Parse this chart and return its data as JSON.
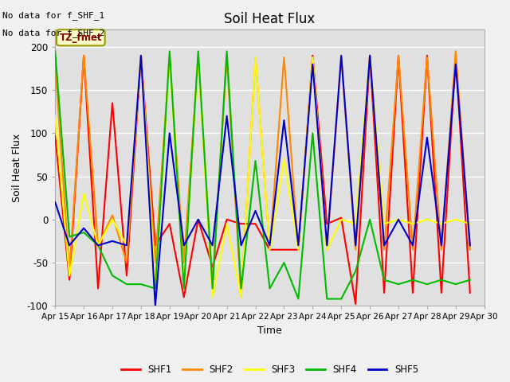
{
  "title": "Soil Heat Flux",
  "ylabel": "Soil Heat Flux",
  "xlabel": "Time",
  "annotation_line1": "No data for f_SHF_1",
  "annotation_line2": "No data for f_SHF_2",
  "legend_label_text": "TZ_fmet",
  "ylim": [
    -100,
    220
  ],
  "series": {
    "SHF1": {
      "color": "#ff0000",
      "x": [
        15.0,
        15.5,
        16.0,
        16.5,
        17.0,
        17.5,
        18.0,
        18.5,
        19.0,
        19.5,
        20.0,
        20.5,
        21.0,
        21.5,
        22.0,
        22.5,
        23.0,
        23.5,
        24.0,
        24.5,
        25.0,
        25.5,
        26.0,
        26.5,
        27.0,
        27.5,
        28.0,
        28.5,
        29.0,
        29.5
      ],
      "y": [
        97,
        -70,
        190,
        -80,
        135,
        -65,
        190,
        -30,
        -5,
        -90,
        0,
        -55,
        0,
        -5,
        -5,
        -35,
        -35,
        -35,
        190,
        -5,
        2,
        -98,
        190,
        -85,
        190,
        -85,
        190,
        -85,
        190,
        -85
      ]
    },
    "SHF2": {
      "color": "#ff8800",
      "x": [
        15.0,
        15.5,
        16.0,
        16.5,
        17.0,
        17.5,
        18.0,
        18.5,
        19.0,
        19.5,
        20.0,
        20.5,
        21.0,
        21.5,
        22.0,
        22.5,
        23.0,
        23.5,
        24.0,
        24.5,
        25.0,
        25.5,
        26.0,
        26.5,
        27.0,
        27.5,
        28.0,
        28.5,
        29.0,
        29.5
      ],
      "y": [
        180,
        -60,
        190,
        -30,
        5,
        -50,
        190,
        -50,
        188,
        -50,
        188,
        -75,
        188,
        -90,
        188,
        -35,
        188,
        -35,
        188,
        -35,
        188,
        -35,
        190,
        -35,
        190,
        -35,
        188,
        -35,
        195,
        -35
      ]
    },
    "SHF3": {
      "color": "#ffff00",
      "x": [
        15.0,
        15.5,
        16.0,
        16.5,
        17.0,
        17.5,
        18.0,
        18.5,
        19.0,
        19.5,
        20.0,
        20.5,
        21.0,
        21.5,
        22.0,
        22.5,
        23.0,
        23.5,
        24.0,
        24.5,
        25.0,
        25.5,
        26.0,
        26.5,
        27.0,
        27.5,
        28.0,
        28.5,
        29.0,
        29.5
      ],
      "y": [
        120,
        -65,
        30,
        -30,
        0,
        -30,
        190,
        -75,
        188,
        -75,
        188,
        -90,
        -5,
        -90,
        188,
        -35,
        70,
        -35,
        188,
        -35,
        0,
        -5,
        188,
        -5,
        0,
        -5,
        0,
        -5,
        0,
        -5
      ]
    },
    "SHF4": {
      "color": "#00bb00",
      "x": [
        15.0,
        15.5,
        16.0,
        16.5,
        17.0,
        17.5,
        18.0,
        18.5,
        19.0,
        19.5,
        20.0,
        20.5,
        21.0,
        21.5,
        22.0,
        22.5,
        23.0,
        23.5,
        24.0,
        24.5,
        25.0,
        25.5,
        26.0,
        26.5,
        27.0,
        27.5,
        28.0,
        28.5,
        29.0,
        29.5
      ],
      "y": [
        195,
        -20,
        -15,
        -30,
        -65,
        -75,
        -75,
        -80,
        195,
        -80,
        195,
        -80,
        195,
        -80,
        68,
        -80,
        -50,
        -92,
        100,
        -92,
        -92,
        -60,
        0,
        -70,
        -75,
        -70,
        -75,
        -70,
        -75,
        -70
      ]
    },
    "SHF5": {
      "color": "#0000cc",
      "x": [
        15.0,
        15.5,
        16.0,
        16.5,
        17.0,
        17.5,
        18.0,
        18.5,
        19.0,
        19.5,
        20.0,
        20.5,
        21.0,
        21.5,
        22.0,
        22.5,
        23.0,
        23.5,
        24.0,
        24.5,
        25.0,
        25.5,
        26.0,
        26.5,
        27.0,
        27.5,
        28.0,
        28.5,
        29.0,
        29.5
      ],
      "y": [
        20,
        -30,
        -10,
        -30,
        -25,
        -30,
        190,
        -100,
        100,
        -30,
        0,
        -30,
        120,
        -30,
        10,
        -30,
        115,
        -30,
        180,
        -30,
        190,
        -30,
        190,
        -30,
        0,
        -30,
        95,
        -30,
        180,
        -30
      ]
    }
  },
  "xticks": [
    15,
    16,
    17,
    18,
    19,
    20,
    21,
    22,
    23,
    24,
    25,
    26,
    27,
    28,
    29,
    30
  ],
  "xtick_labels": [
    "Apr 15",
    "Apr 16",
    "Apr 17",
    "Apr 18",
    "Apr 19",
    "Apr 20",
    "Apr 21",
    "Apr 22",
    "Apr 23",
    "Apr 24",
    "Apr 25",
    "Apr 26",
    "Apr 27",
    "Apr 28",
    "Apr 29",
    "Apr 30"
  ],
  "yticks": [
    -100,
    -50,
    0,
    50,
    100,
    150,
    200
  ],
  "plot_bg_color": "#e0e0e0",
  "fig_bg_color": "#f0f0f0",
  "grid_color": "#ffffff",
  "legend_colors": [
    "#ff0000",
    "#ff8800",
    "#ffff00",
    "#00bb00",
    "#0000cc"
  ],
  "legend_labels": [
    "SHF1",
    "SHF2",
    "SHF3",
    "SHF4",
    "SHF5"
  ]
}
